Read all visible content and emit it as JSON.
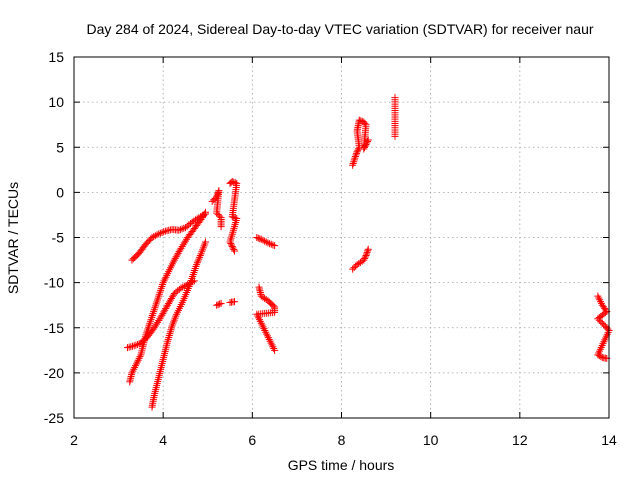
{
  "chart_data": {
    "type": "scatter",
    "title": "Day 284 of 2024, Sidereal Day-to-day VTEC variation (SDTVAR) for receiver naur",
    "xlabel": "GPS time / hours",
    "ylabel": "SDTVAR / TECUs",
    "xlim": [
      2,
      14
    ],
    "ylim": [
      -25,
      15
    ],
    "xticks": [
      2,
      4,
      6,
      8,
      10,
      12,
      14
    ],
    "yticks": [
      -25,
      -20,
      -15,
      -10,
      -5,
      0,
      5,
      10,
      15
    ],
    "grid": true,
    "marker": "plus",
    "color": "#ff0000",
    "series": [
      {
        "points": [
          [
            3.3,
            -7.5
          ],
          [
            3.45,
            -6.8
          ],
          [
            3.6,
            -5.8
          ],
          [
            3.75,
            -5.0
          ],
          [
            3.9,
            -4.6
          ],
          [
            4.05,
            -4.3
          ],
          [
            4.2,
            -4.1
          ],
          [
            4.35,
            -4.2
          ],
          [
            4.5,
            -3.9
          ],
          [
            4.65,
            -3.3
          ],
          [
            4.8,
            -2.8
          ],
          [
            4.95,
            -2.4
          ]
        ]
      },
      {
        "points": [
          [
            3.2,
            -17.2
          ],
          [
            3.35,
            -17.0
          ],
          [
            3.5,
            -16.7
          ],
          [
            3.65,
            -16.0
          ],
          [
            3.8,
            -15.0
          ],
          [
            3.95,
            -13.8
          ],
          [
            4.1,
            -12.5
          ],
          [
            4.25,
            -11.2
          ],
          [
            4.4,
            -10.6
          ],
          [
            4.55,
            -10.2
          ],
          [
            4.7,
            -9.8
          ]
        ]
      },
      {
        "points": [
          [
            3.25,
            -21.0
          ],
          [
            3.3,
            -20.0
          ],
          [
            3.4,
            -19.0
          ],
          [
            3.5,
            -18.0
          ],
          [
            3.6,
            -16.0
          ],
          [
            3.7,
            -14.5
          ],
          [
            3.8,
            -13.0
          ],
          [
            3.9,
            -11.5
          ],
          [
            4.0,
            -10.0
          ],
          [
            4.1,
            -9.0
          ],
          [
            4.25,
            -7.5
          ],
          [
            4.4,
            -6.2
          ],
          [
            4.55,
            -5.0
          ],
          [
            4.7,
            -4.0
          ],
          [
            4.85,
            -3.0
          ],
          [
            4.95,
            -2.2
          ]
        ]
      },
      {
        "points": [
          [
            3.75,
            -23.8
          ],
          [
            3.8,
            -22.5
          ],
          [
            3.9,
            -20.5
          ],
          [
            4.0,
            -18.5
          ],
          [
            4.1,
            -16.5
          ],
          [
            4.2,
            -14.8
          ],
          [
            4.3,
            -13.5
          ],
          [
            4.45,
            -12.0
          ],
          [
            4.6,
            -10.2
          ],
          [
            4.75,
            -8.0
          ],
          [
            4.85,
            -6.8
          ],
          [
            4.95,
            -5.5
          ]
        ]
      },
      {
        "points": [
          [
            5.1,
            -1.0
          ],
          [
            5.2,
            -0.5
          ],
          [
            5.25,
            0.2
          ],
          [
            5.2,
            -2.3
          ],
          [
            5.3,
            -2.8
          ],
          [
            5.3,
            -3.8
          ],
          [
            5.2,
            -12.5
          ],
          [
            5.3,
            -12.3
          ]
        ]
      },
      {
        "points": [
          [
            5.5,
            1.0
          ],
          [
            5.55,
            1.2
          ],
          [
            5.65,
            1.0
          ],
          [
            5.55,
            -2.7
          ],
          [
            5.65,
            -2.9
          ],
          [
            5.5,
            -5.5
          ],
          [
            5.55,
            -6.0
          ],
          [
            5.6,
            -6.5
          ],
          [
            5.5,
            -12.2
          ],
          [
            5.6,
            -12.1
          ]
        ]
      },
      {
        "points": [
          [
            6.1,
            -5.0
          ],
          [
            6.2,
            -5.2
          ],
          [
            6.35,
            -5.6
          ],
          [
            6.5,
            -5.9
          ],
          [
            6.15,
            -10.5
          ],
          [
            6.2,
            -11.5
          ],
          [
            6.35,
            -12.0
          ],
          [
            6.5,
            -12.7
          ],
          [
            6.5,
            -13.3
          ],
          [
            6.1,
            -13.5
          ],
          [
            6.2,
            -14.5
          ],
          [
            6.3,
            -15.5
          ],
          [
            6.4,
            -16.5
          ],
          [
            6.5,
            -17.5
          ]
        ]
      },
      {
        "points": [
          [
            8.25,
            3.0
          ],
          [
            8.3,
            3.8
          ],
          [
            8.35,
            4.5
          ],
          [
            8.4,
            5.0
          ],
          [
            8.35,
            6.8
          ],
          [
            8.4,
            8.0
          ],
          [
            8.5,
            7.8
          ],
          [
            8.55,
            7.5
          ],
          [
            8.5,
            4.8
          ],
          [
            8.55,
            5.3
          ],
          [
            8.6,
            5.8
          ],
          [
            8.25,
            -8.5
          ],
          [
            8.35,
            -8.0
          ],
          [
            8.5,
            -7.5
          ],
          [
            8.55,
            -7.0
          ],
          [
            8.6,
            -6.3
          ]
        ]
      },
      {
        "points": [
          [
            9.2,
            10.5
          ],
          [
            9.2,
            6.2
          ]
        ]
      },
      {
        "points": [
          [
            13.75,
            -11.5
          ],
          [
            13.85,
            -12.5
          ],
          [
            13.95,
            -13.2
          ],
          [
            13.75,
            -14.0
          ],
          [
            13.85,
            -14.5
          ],
          [
            13.95,
            -15.0
          ],
          [
            14.0,
            -15.3
          ],
          [
            13.75,
            -18.0
          ],
          [
            13.85,
            -18.3
          ],
          [
            13.95,
            -18.4
          ]
        ]
      }
    ]
  }
}
